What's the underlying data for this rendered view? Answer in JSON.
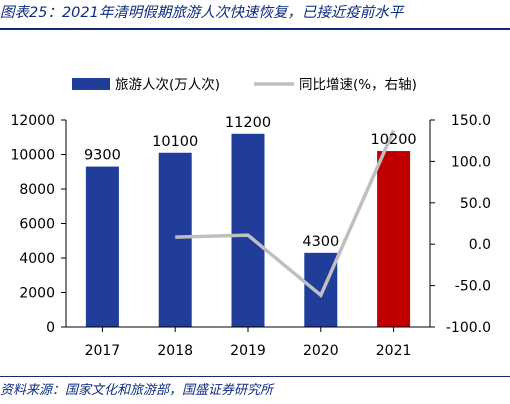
{
  "figure_title": "图表25：2021年清明假期旅游人次快速恢复，已接近疫前水平",
  "source_note": "资料来源：国家文化和旅游部，国盛证券研究所",
  "colors": {
    "bar": "#1f3d99",
    "bar_highlight": "#c00000",
    "line": "#bfbfbf",
    "title": "#0e2d79"
  },
  "chart_data": {
    "type": "bar",
    "categories": [
      "2017",
      "2018",
      "2019",
      "2020",
      "2021"
    ],
    "series": [
      {
        "name": "旅游人次(万人次)",
        "type": "bar",
        "axis": "left",
        "values": [
          9300,
          10100,
          11200,
          4300,
          10200
        ],
        "data_labels": [
          "9300",
          "10100",
          "11200",
          "4300",
          "10200"
        ],
        "highlight_index": 4
      },
      {
        "name": "同比增速(%，右轴)",
        "type": "line",
        "axis": "right",
        "values": [
          null,
          8.6,
          10.9,
          -61.6,
          137.2
        ]
      }
    ],
    "y_left": {
      "ylim": [
        0,
        12000
      ],
      "ticks": [
        "0",
        "2000",
        "4000",
        "6000",
        "8000",
        "10000",
        "12000"
      ]
    },
    "y_right": {
      "ylim": [
        -100,
        150
      ],
      "ticks": [
        "-100.0",
        "-50.0",
        "0.0",
        "50.0",
        "100.0",
        "150.0"
      ]
    },
    "legend": {
      "placement": "top"
    },
    "grid": false
  }
}
